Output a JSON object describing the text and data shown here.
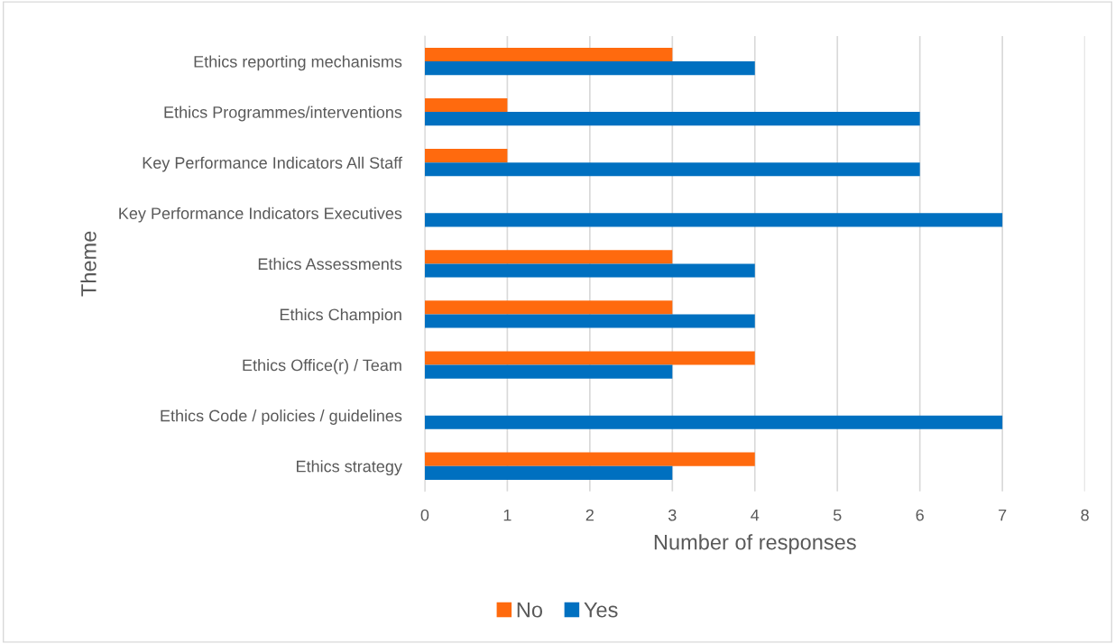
{
  "chart_data": {
    "type": "bar",
    "orientation": "horizontal",
    "xlabel": "Number of responses",
    "ylabel": "Theme",
    "categories": [
      "Ethics reporting mechanisms",
      "Ethics Programmes/interventions",
      "Key Performance Indicators All Staff",
      "Key Performance Indicators Executives",
      "Ethics Assessments",
      "Ethics Champion",
      "Ethics Office(r) / Team",
      "Ethics Code / policies / guidelines",
      "Ethics strategy"
    ],
    "series": [
      {
        "name": "No",
        "color": "#ff6a0e",
        "values": [
          3,
          1,
          1,
          0,
          3,
          3,
          4,
          0,
          4
        ]
      },
      {
        "name": "Yes",
        "color": "#0070c0",
        "values": [
          4,
          6,
          6,
          7,
          4,
          4,
          3,
          7,
          3
        ]
      }
    ],
    "xlim": [
      0,
      8
    ],
    "xticks": [
      0,
      1,
      2,
      3,
      4,
      5,
      6,
      7,
      8
    ],
    "grid": "x",
    "legend": "bottom"
  }
}
